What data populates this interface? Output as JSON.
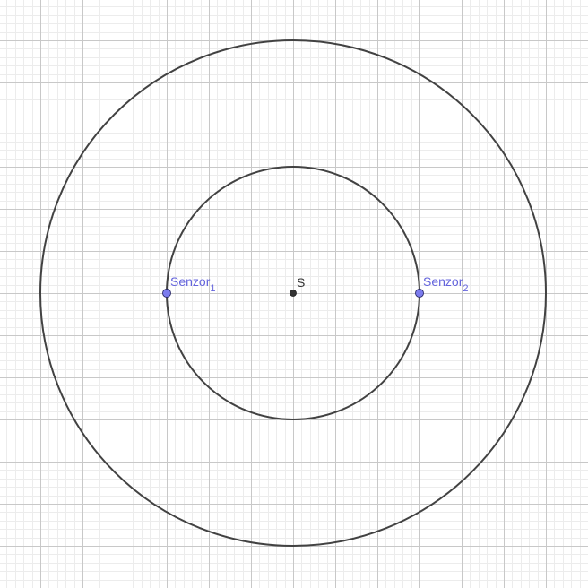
{
  "points": {
    "center": {
      "label": "S"
    },
    "sensor1": {
      "label": "Senzor",
      "subscript": "1"
    },
    "sensor2": {
      "label": "Senzor",
      "subscript": "2"
    }
  },
  "colors": {
    "background": "#ffffff",
    "grid_minor": "#ececec",
    "grid_major": "#c8c8c8",
    "circle_stroke": "#424242",
    "center_point": "#333333",
    "sensor_point": "#7b7bee",
    "sensor_label": "#6464dc"
  }
}
